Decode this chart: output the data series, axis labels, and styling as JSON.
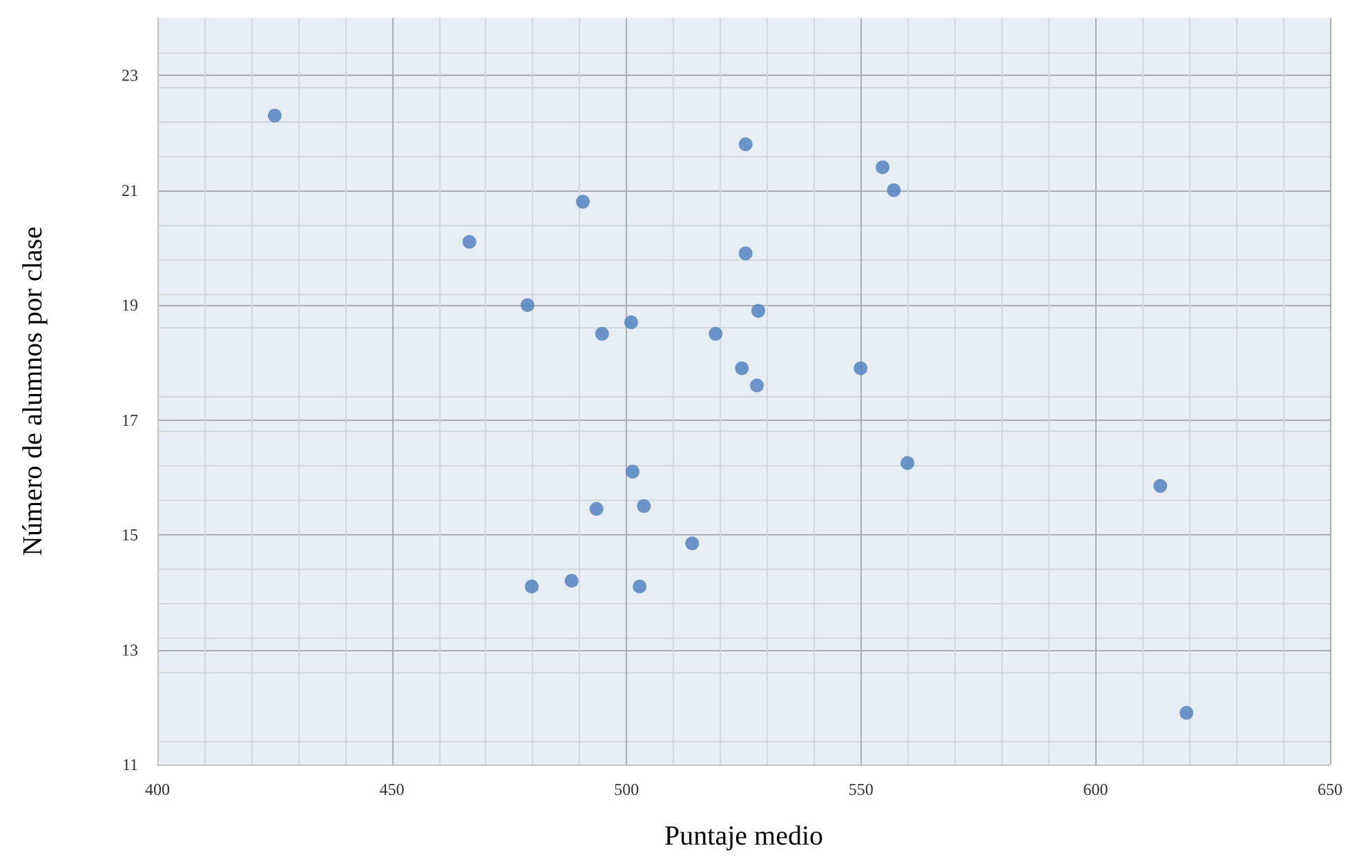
{
  "chart_data": {
    "type": "scatter",
    "xlabel": "Puntaje medio",
    "ylabel": "Número de alumnos por clase",
    "x": [
      425.0,
      525.4,
      554.6,
      557.0,
      490.7,
      466.5,
      525.4,
      478.9,
      528.1,
      501.0,
      494.8,
      519.0,
      524.6,
      549.9,
      527.8,
      559.9,
      501.3,
      613.8,
      503.7,
      493.6,
      514.0,
      488.3,
      479.8,
      502.8,
      619.4
    ],
    "series": [
      {
        "color": "#4a7ebb",
        "values": [
          22.3,
          21.8,
          21.4,
          21.0,
          20.8,
          20.1,
          19.9,
          19.0,
          18.9,
          18.7,
          18.5,
          18.5,
          17.9,
          17.9,
          17.6,
          16.25,
          16.1,
          15.85,
          15.5,
          15.45,
          14.85,
          14.2,
          14.1,
          14.1,
          11.9
        ]
      }
    ],
    "xlim": [
      400,
      650
    ],
    "xticks": [
      400,
      450,
      500,
      550,
      600,
      650
    ],
    "ylim": [
      11,
      24
    ],
    "yticks": [
      11,
      13,
      15,
      17,
      19,
      21,
      23
    ],
    "grid": true,
    "marker": "circle"
  }
}
